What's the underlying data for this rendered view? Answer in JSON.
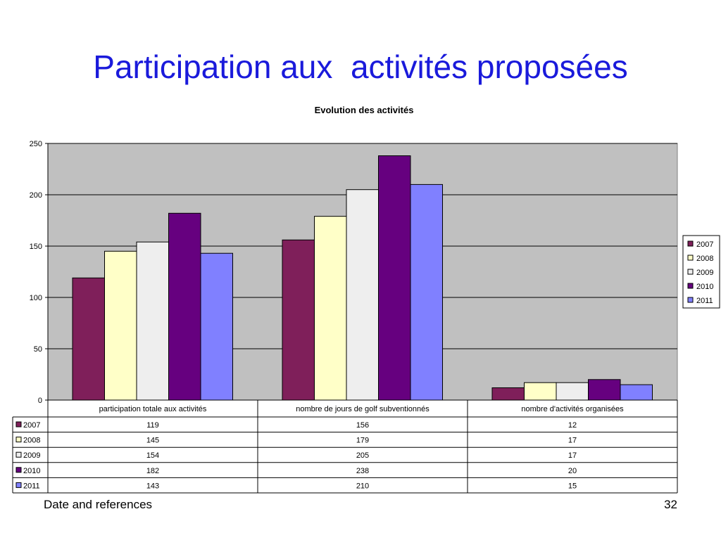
{
  "slide": {
    "title": "Participation aux  activités proposées",
    "footer_left": "Date and references",
    "page_number": "32"
  },
  "chart_data": {
    "type": "bar",
    "title": "Evolution des activités",
    "categories": [
      "participation totale aux activités",
      "nombre de jours de golf subventionnés",
      "nombre d'activités organisées"
    ],
    "series": [
      {
        "name": "2007",
        "values": [
          119,
          156,
          12
        ],
        "color": "#7f1f5a"
      },
      {
        "name": "2008",
        "values": [
          145,
          179,
          17
        ],
        "color": "#ffffc8"
      },
      {
        "name": "2009",
        "values": [
          154,
          205,
          17
        ],
        "color": "#eeeeee"
      },
      {
        "name": "2010",
        "values": [
          182,
          238,
          20
        ],
        "color": "#66007f"
      },
      {
        "name": "2011",
        "values": [
          143,
          210,
          15
        ],
        "color": "#8080ff"
      }
    ],
    "ylim": [
      0,
      250
    ],
    "yticks": [
      0,
      50,
      100,
      150,
      200,
      250
    ],
    "grid": true,
    "legend": "right",
    "plot_background": "#c0c0c0",
    "data_table": true
  }
}
